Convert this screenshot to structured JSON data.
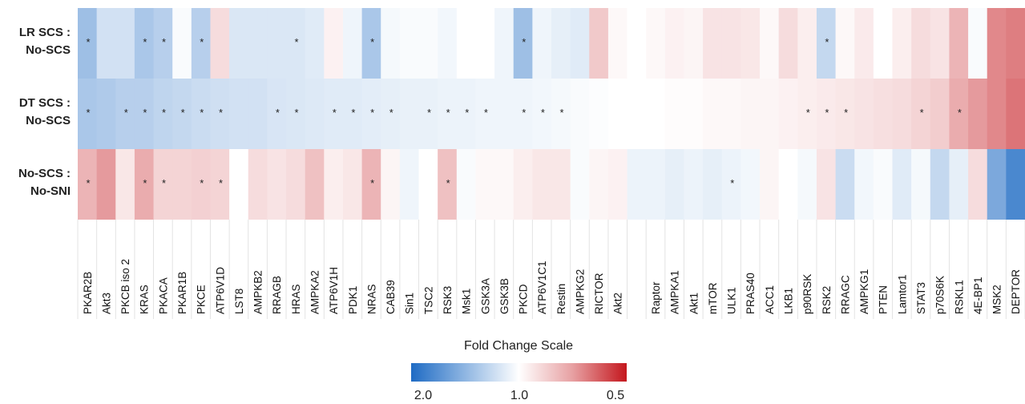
{
  "chart_data": {
    "type": "heatmap",
    "rows": [
      "LR SCS :|No-SCS",
      "DT SCS :|No-SCS",
      "No-SCS :|No-SNI"
    ],
    "columns": [
      "PKAR2B",
      "Akt3",
      "PKCB iso 2",
      "KRAS",
      "PKACA",
      "PKAR1B",
      "PKCE",
      "ATP6V1D",
      "LST8",
      "AMPKB2",
      "RRAGB",
      "HRAS",
      "AMPKA2",
      "ATP6V1H",
      "PDK1",
      "NRAS",
      "CAB39",
      "Sin1",
      "TSC2",
      "RSK3",
      "Msk1",
      "GSK3A",
      "GSK3B",
      "PKCD",
      "ATP6V1C1",
      "Restin",
      "AMPKG2",
      "RICTOR",
      "Akt2",
      "",
      "Raptor",
      "AMPKA1",
      "Akt1",
      "mTOR",
      "ULK1",
      "PRAS40",
      "ACC1",
      "LKB1",
      "p90RSK",
      "RSK2",
      "RRAGC",
      "AMPKG1",
      "PTEN",
      "Lamtor1",
      "STAT3",
      "p70S6K",
      "RSKL1",
      "4E-BP1",
      "MSK2",
      "DEPTOR"
    ],
    "values": [
      [
        1.35,
        1.15,
        1.15,
        1.3,
        1.25,
        1.02,
        1.25,
        0.9,
        1.12,
        1.12,
        1.12,
        1.12,
        1.1,
        0.96,
        1.05,
        1.3,
        1.03,
        1.02,
        1.02,
        1.04,
        1.0,
        1.0,
        1.05,
        1.35,
        1.05,
        1.08,
        1.1,
        0.85,
        0.98,
        1.0,
        0.98,
        0.96,
        0.97,
        0.92,
        0.92,
        0.93,
        0.98,
        0.9,
        0.95,
        1.2,
        0.98,
        0.94,
        1.0,
        0.95,
        0.9,
        0.92,
        0.8,
        1.02,
        0.7,
        0.68
      ],
      [
        1.3,
        1.28,
        1.25,
        1.25,
        1.22,
        1.2,
        1.18,
        1.16,
        1.15,
        1.15,
        1.13,
        1.12,
        1.11,
        1.1,
        1.1,
        1.09,
        1.08,
        1.07,
        1.07,
        1.06,
        1.06,
        1.05,
        1.05,
        1.05,
        1.04,
        1.03,
        1.02,
        1.01,
        1.0,
        1.0,
        1.0,
        0.99,
        0.99,
        0.98,
        0.98,
        0.97,
        0.97,
        0.96,
        0.95,
        0.94,
        0.93,
        0.92,
        0.91,
        0.9,
        0.88,
        0.86,
        0.78,
        0.74,
        0.7,
        0.66
      ],
      [
        0.8,
        0.74,
        0.93,
        0.78,
        0.88,
        0.88,
        0.87,
        0.88,
        1.0,
        0.9,
        0.92,
        0.9,
        0.83,
        0.95,
        0.93,
        0.8,
        0.97,
        1.05,
        1.0,
        0.83,
        1.02,
        0.98,
        0.98,
        0.95,
        0.93,
        0.93,
        1.02,
        0.97,
        0.96,
        1.06,
        1.06,
        1.08,
        1.06,
        1.08,
        1.06,
        1.04,
        0.97,
        1.0,
        1.03,
        0.92,
        1.18,
        1.04,
        1.02,
        1.1,
        1.03,
        1.2,
        1.08,
        0.9,
        1.5,
        1.75
      ]
    ],
    "significant": [
      [
        0,
        3,
        4,
        6,
        11,
        15,
        23,
        39
      ],
      [
        0,
        2,
        3,
        4,
        5,
        6,
        7,
        10,
        11,
        13,
        14,
        15,
        16,
        18,
        19,
        20,
        21,
        23,
        24,
        25,
        38,
        39,
        40,
        44,
        46
      ],
      [
        0,
        3,
        4,
        6,
        7,
        15,
        19,
        34
      ]
    ],
    "scale": {
      "title": "Fold Change Scale",
      "ticks": [
        "2.0",
        "1.0",
        "0.5"
      ],
      "low_color": "#2f6fc6",
      "mid_color": "#ffffff",
      "high_color": "#c81f24"
    }
  }
}
